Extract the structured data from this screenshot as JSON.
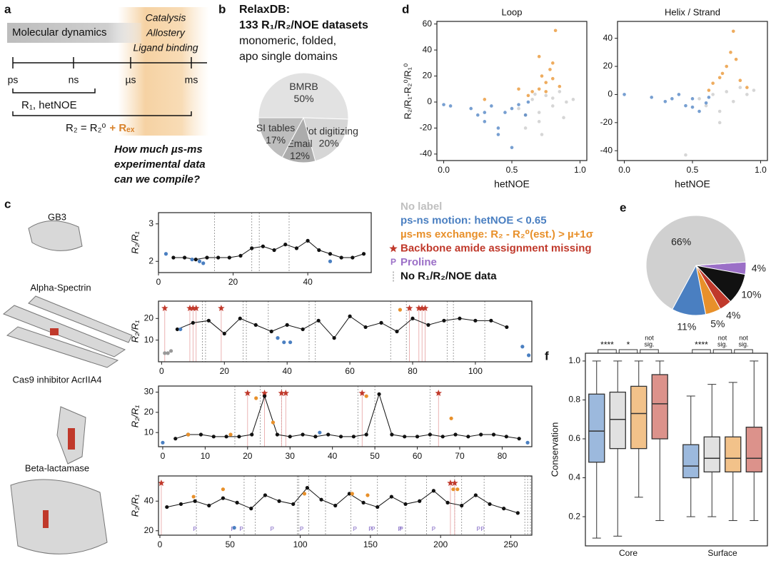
{
  "panel_a": {
    "label": "a",
    "bar_text": "Molecular dynamics",
    "window_text": [
      "Catalysis",
      "Allostery",
      "Ligand binding"
    ],
    "timescales": [
      "ps",
      "ns",
      "µs",
      "ms"
    ],
    "r1_text": "R₁, hetNOE",
    "r2_text": "R₂ = R₂⁰",
    "rex_text": "+ Rₑₓ",
    "question": [
      "How much µs-ms",
      "experimental data",
      "can we compile?"
    ]
  },
  "panel_b": {
    "label": "b",
    "title": [
      "RelaxDB:",
      "133 R₁/R₂/NOE datasets"
    ],
    "subtitle": [
      "monomeric, folded,",
      "apo single domains"
    ],
    "chart_data": {
      "type": "pie",
      "categories": [
        "BMRB",
        "Plot digitizing",
        "Email",
        "SI tables"
      ],
      "values": [
        50,
        20,
        12,
        17
      ],
      "value_labels": [
        "50%",
        "20%",
        "12%",
        "17%"
      ],
      "colors": [
        "#e2e2e2",
        "#d6d6d6",
        "#acacac",
        "#bdbdbd"
      ]
    }
  },
  "panel_d": {
    "label": "d",
    "ylabel": "R₂/R₁-R₂⁰/R₁⁰",
    "charts": [
      {
        "type": "scatter",
        "title": "Loop",
        "xlabel": "hetNOE",
        "xlim": [
          -0.05,
          1.05
        ],
        "xticks": [
          {
            "value": 0,
            "label": "0.0"
          },
          0.5,
          {
            "value": 1,
            "label": "1.0"
          }
        ],
        "ylim": [
          -45,
          62
        ],
        "yticks": [
          -40,
          -20,
          0,
          20,
          40,
          60
        ],
        "series": [
          {
            "color": "#c8c8c8",
            "x": [
              0.55,
              0.6,
              0.65,
              0.7,
              0.75,
              0.8,
              0.85,
              0.9,
              0.6,
              0.7,
              0.8,
              0.72,
              0.88,
              0.95,
              0.67
            ],
            "values": [
              -5,
              -10,
              2,
              -15,
              5,
              -3,
              8,
              0,
              -20,
              -8,
              3,
              -25,
              -12,
              2,
              6
            ]
          },
          {
            "color": "#4a7fc1",
            "x": [
              0.0,
              0.05,
              0.2,
              0.25,
              0.3,
              0.35,
              0.4,
              0.45,
              0.5,
              0.55,
              0.6,
              0.62,
              0.4,
              0.5,
              0.3
            ],
            "values": [
              -2,
              -3,
              -5,
              -10,
              -15,
              -3,
              -20,
              -8,
              -5,
              -2,
              -10,
              0,
              -25,
              -35,
              -8
            ]
          },
          {
            "color": "#e8902a",
            "x": [
              0.62,
              0.65,
              0.7,
              0.72,
              0.75,
              0.78,
              0.8,
              0.82,
              0.85,
              0.7,
              0.75,
              0.8,
              0.55,
              0.3
            ],
            "values": [
              5,
              8,
              10,
              20,
              15,
              25,
              30,
              55,
              12,
              35,
              8,
              18,
              10,
              2
            ]
          }
        ]
      },
      {
        "type": "scatter",
        "title": "Helix / Strand",
        "xlabel": "hetNOE",
        "xlim": [
          -0.05,
          1.05
        ],
        "xticks": [
          {
            "value": 0,
            "label": "0.0"
          },
          0.5,
          {
            "value": 1,
            "label": "1.0"
          }
        ],
        "ylim": [
          -47,
          52
        ],
        "yticks": [
          -40,
          -20,
          0,
          20,
          40
        ],
        "series": [
          {
            "color": "#c8c8c8",
            "x": [
              0.55,
              0.6,
              0.65,
              0.7,
              0.75,
              0.8,
              0.85,
              0.9,
              0.95,
              0.7,
              0.45
            ],
            "values": [
              -3,
              -8,
              0,
              -12,
              2,
              -5,
              5,
              0,
              3,
              -20,
              -43
            ]
          },
          {
            "color": "#4a7fc1",
            "x": [
              0.0,
              0.2,
              0.3,
              0.4,
              0.45,
              0.5,
              0.55,
              0.6,
              0.62,
              0.35,
              0.5
            ],
            "values": [
              0,
              -2,
              -5,
              0,
              -8,
              -3,
              -12,
              -6,
              -2,
              -3,
              -9
            ]
          },
          {
            "color": "#e8902a",
            "x": [
              0.62,
              0.65,
              0.7,
              0.75,
              0.8,
              0.82,
              0.85,
              0.9,
              0.78,
              0.72
            ],
            "values": [
              3,
              8,
              12,
              20,
              45,
              25,
              10,
              5,
              30,
              15
            ]
          }
        ]
      }
    ]
  },
  "panel_c": {
    "label": "c",
    "ylabel": "R₂/R₁",
    "legend": {
      "items": [
        {
          "text": "No label",
          "color": "#c0c0c0"
        },
        {
          "text": "ps-ns motion: hetNOE < 0.65",
          "color": "#4a7fc1"
        },
        {
          "text": "µs-ms exchange: R₂ - R₂⁰(est.) > µ+1σ",
          "color": "#e8902a"
        },
        {
          "text": "Backbone amide assignment missing",
          "color": "#c0392b",
          "marker": "star"
        },
        {
          "text": "Proline",
          "color": "#9b6fc7",
          "symbol": "P"
        },
        {
          "text": "No R₁/R₂/NOE data",
          "color": "#111111",
          "marker": "dashed"
        }
      ]
    },
    "tracks": [
      {
        "name": "GB3",
        "xlim": [
          0,
          57
        ],
        "ylim": [
          1.7,
          3.3
        ],
        "xticks": [
          0,
          20,
          40
        ],
        "yticks": [
          2,
          3
        ],
        "series": [
          {
            "color": "#111111",
            "x": [
              4,
              7,
              10,
              13,
              16,
              19,
              22,
              25,
              28,
              31,
              34,
              37,
              40,
              43,
              46,
              49,
              52,
              55
            ],
            "values": [
              2.1,
              2.1,
              2.05,
              2.1,
              2.1,
              2.1,
              2.15,
              2.35,
              2.4,
              2.3,
              2.45,
              2.35,
              2.55,
              2.3,
              2.2,
              2.1,
              2.1,
              2.2
            ]
          },
          {
            "color": "#4a7fc1",
            "x": [
              2,
              9,
              11,
              12,
              46
            ],
            "values": [
              2.2,
              2.05,
              2.0,
              1.95,
              2.0
            ]
          }
        ],
        "stars": [],
        "prolines": [],
        "no_data": [
          15,
          25,
          27,
          35
        ]
      },
      {
        "name": "Alpha-Spectrin",
        "xlim": [
          -1,
          118
        ],
        "ylim": [
          0,
          28
        ],
        "xticks": [
          0,
          20,
          40,
          60,
          80,
          100
        ],
        "yticks": [
          10,
          20
        ],
        "series": [
          {
            "color": "#111111",
            "x": [
              5,
              10,
              15,
              20,
              25,
              30,
              35,
              40,
              45,
              50,
              55,
              60,
              65,
              70,
              75,
              80,
              85,
              90,
              95,
              100,
              105,
              110
            ],
            "values": [
              15,
              18,
              19,
              13,
              20,
              17,
              14,
              17,
              15,
              19,
              11,
              21,
              16,
              18,
              14,
              20,
              17,
              19,
              20,
              19,
              19,
              16
            ]
          },
          {
            "color": "#4a7fc1",
            "x": [
              6,
              37,
              39,
              41,
              115,
              117
            ],
            "values": [
              15,
              11,
              9,
              9,
              7,
              3
            ]
          },
          {
            "color": "#999999",
            "x": [
              1,
              2,
              3
            ],
            "values": [
              4,
              4,
              5
            ]
          },
          {
            "color": "#e8902a",
            "x": [
              76
            ],
            "values": [
              24
            ]
          }
        ],
        "stars": [
          1,
          9,
          10,
          11,
          19,
          79,
          82,
          83,
          84
        ],
        "prolines": [],
        "no_data": [
          13,
          14,
          26,
          27,
          34,
          47,
          49,
          73,
          78,
          91,
          93,
          103
        ]
      },
      {
        "name": "Cas9 inhibitor AcrIIA4",
        "xlim": [
          -1,
          87
        ],
        "ylim": [
          3,
          33
        ],
        "xticks": [
          0,
          10,
          20,
          30,
          40,
          50,
          60,
          70,
          80
        ],
        "yticks": [
          10,
          20,
          30
        ],
        "series": [
          {
            "color": "#111111",
            "x": [
              3,
              6,
              9,
              12,
              15,
              18,
              21,
              24,
              27,
              30,
              33,
              36,
              39,
              42,
              45,
              48,
              51,
              54,
              57,
              60,
              63,
              66,
              69,
              72,
              75,
              78,
              81,
              84
            ],
            "values": [
              7,
              9,
              9,
              8,
              8,
              8,
              9,
              28,
              9,
              8,
              9,
              8,
              9,
              8,
              8,
              9,
              29,
              9,
              8,
              8,
              9,
              8,
              9,
              8,
              9,
              9,
              8,
              7
            ]
          },
          {
            "color": "#e8902a",
            "x": [
              6,
              16,
              22,
              26,
              48,
              68
            ],
            "values": [
              9,
              9,
              27,
              15,
              28,
              17
            ]
          },
          {
            "color": "#4a7fc1",
            "x": [
              0,
              37,
              86
            ],
            "values": [
              5,
              10,
              5
            ]
          }
        ],
        "stars": [
          20,
          24,
          28,
          29,
          47,
          65
        ],
        "prolines": [],
        "no_data": [
          17,
          23,
          28,
          46,
          50,
          63
        ]
      },
      {
        "name": "Beta-lactamase",
        "xlim": [
          -1,
          265
        ],
        "ylim": [
          17,
          57
        ],
        "xticks": [
          0,
          50,
          100,
          150,
          200,
          250
        ],
        "yticks": [
          20,
          40
        ],
        "series": [
          {
            "color": "#111111",
            "x": [
              5,
              15,
              25,
              35,
              45,
              55,
              65,
              75,
              85,
              95,
              105,
              115,
              125,
              135,
              145,
              155,
              165,
              175,
              185,
              195,
              205,
              215,
              225,
              235,
              245,
              255
            ],
            "values": [
              36,
              38,
              40,
              37,
              42,
              39,
              35,
              44,
              40,
              38,
              49,
              41,
              37,
              45,
              39,
              36,
              43,
              38,
              40,
              47,
              39,
              37,
              44,
              38,
              35,
              32
            ]
          },
          {
            "color": "#e8902a",
            "x": [
              24,
              45,
              103,
              137,
              148,
              209,
              212
            ],
            "values": [
              43,
              48,
              45,
              45,
              44,
              48,
              48
            ]
          },
          {
            "color": "#4a7fc1",
            "x": [
              53
            ],
            "values": [
              22
            ]
          }
        ],
        "stars": [
          1,
          207,
          210
        ],
        "prolines": [
          25,
          52,
          58,
          80,
          101,
          139,
          150,
          152,
          171,
          172,
          195,
          227,
          230
        ],
        "no_data": [
          26,
          60,
          68,
          98,
          99,
          106,
          118,
          136,
          155,
          175,
          190,
          210,
          215,
          231,
          260,
          262,
          264
        ]
      }
    ]
  },
  "panel_e": {
    "label": "e",
    "chart_data": {
      "type": "pie",
      "values": [
        4,
        10,
        4,
        5,
        11,
        66
      ],
      "value_labels": [
        "4%",
        "10%",
        "4%",
        "5%",
        "11%",
        "66%"
      ],
      "colors": [
        "#9b6fc7",
        "#111111",
        "#c0392b",
        "#e8902a",
        "#4a7fc1",
        "#d0d0d0"
      ]
    }
  },
  "panel_f": {
    "label": "f",
    "chart_data": {
      "type": "box",
      "ylabel": "Conservation",
      "ylim": [
        0.05,
        1.04
      ],
      "yticks": [
        0.2,
        0.4,
        0.6,
        0.8,
        {
          "value": 1,
          "label": "1.0"
        }
      ],
      "colors": [
        "#4a7fc1",
        "#c8c8c8",
        "#e8902a",
        "#c0392b"
      ],
      "groups": [
        {
          "name": "Core",
          "boxes": [
            {
              "whislo": 0.09,
              "q1": 0.48,
              "med": 0.64,
              "q3": 0.83,
              "whishi": 1.0
            },
            {
              "whislo": 0.1,
              "q1": 0.55,
              "med": 0.7,
              "q3": 0.84,
              "whishi": 1.0
            },
            {
              "whislo": 0.3,
              "q1": 0.55,
              "med": 0.73,
              "q3": 0.87,
              "whishi": 1.0
            },
            {
              "whislo": 0.18,
              "q1": 0.6,
              "med": 0.78,
              "q3": 0.93,
              "whishi": 1.0
            }
          ],
          "significance": [
            "****",
            "*",
            {
              "lines": [
                "not",
                "sig."
              ]
            }
          ]
        },
        {
          "name": "Surface",
          "boxes": [
            {
              "whislo": 0.2,
              "q1": 0.4,
              "med": 0.46,
              "q3": 0.57,
              "whishi": 0.82
            },
            {
              "whislo": 0.2,
              "q1": 0.43,
              "med": 0.5,
              "q3": 0.61,
              "whishi": 0.88
            },
            {
              "whislo": 0.18,
              "q1": 0.43,
              "med": 0.5,
              "q3": 0.61,
              "whishi": 0.89
            },
            {
              "whislo": 0.18,
              "q1": 0.43,
              "med": 0.5,
              "q3": 0.66,
              "whishi": 1.0
            }
          ],
          "significance": [
            "****",
            {
              "lines": [
                "not",
                "sig."
              ]
            },
            {
              "lines": [
                "not",
                "sig."
              ]
            }
          ]
        }
      ]
    }
  }
}
